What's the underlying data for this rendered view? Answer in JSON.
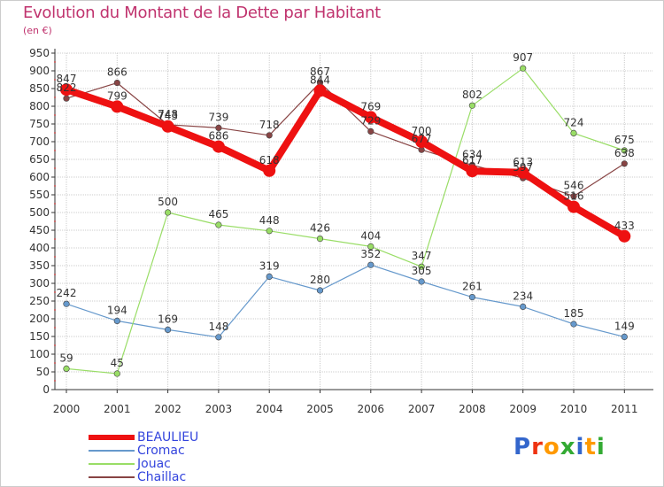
{
  "title": "Evolution du Montant de la Dette par Habitant",
  "subtitle": "(en €)",
  "logo_text": "Proxiti",
  "colors": {
    "title": "#c0336e",
    "grid": "#cccccc",
    "axis": "#333333",
    "legend_text": "#3344dd"
  },
  "chart_data": {
    "type": "line",
    "title": "Evolution du Montant de la Dette par Habitant",
    "subtitle": "(en €)",
    "xlabel": "",
    "ylabel": "",
    "x": [
      "2000",
      "2001",
      "2002",
      "2003",
      "2004",
      "2005",
      "2006",
      "2007",
      "2008",
      "2009",
      "2010",
      "2011"
    ],
    "ylim": [
      0,
      950
    ],
    "yticks": [
      "0",
      "50",
      "100",
      "150",
      "200",
      "250",
      "300",
      "350",
      "400",
      "450",
      "500",
      "550",
      "600",
      "650",
      "700",
      "750",
      "800",
      "850",
      "900",
      "950"
    ],
    "grid": true,
    "legend_position": "bottom-left",
    "series": [
      {
        "name": "BEAULIEU",
        "color": "#ee1111",
        "values": [
          847,
          799,
          743,
          686,
          618,
          844,
          769,
          700,
          617,
          613,
          516,
          433
        ],
        "labels": [
          "847",
          "799",
          "743",
          "686",
          "618",
          "844",
          "769",
          "700",
          "617",
          "613",
          "516",
          "433"
        ]
      },
      {
        "name": "Cromac",
        "color": "#6699cc",
        "values": [
          242,
          194,
          169,
          148,
          319,
          280,
          352,
          305,
          261,
          234,
          185,
          149
        ],
        "labels": [
          "242",
          "194",
          "169",
          "148",
          "319",
          "280",
          "352",
          "305",
          "261",
          "234",
          "185",
          "149"
        ]
      },
      {
        "name": "Jouac",
        "color": "#99dd66",
        "values": [
          59,
          45,
          500,
          465,
          448,
          426,
          404,
          347,
          802,
          907,
          724,
          675
        ],
        "labels": [
          "59",
          "45",
          "500",
          "465",
          "448",
          "426",
          "404",
          "347",
          "802",
          "907",
          "724",
          "675"
        ]
      },
      {
        "name": "Chaillac",
        "color": "#884444",
        "values": [
          822,
          866,
          748,
          739,
          718,
          867,
          729,
          677,
          634,
          597,
          546,
          638
        ],
        "labels": [
          "822",
          "866",
          "748",
          "739",
          "718",
          "867",
          "729",
          "677",
          "634",
          "597",
          "546",
          "638"
        ]
      }
    ]
  }
}
